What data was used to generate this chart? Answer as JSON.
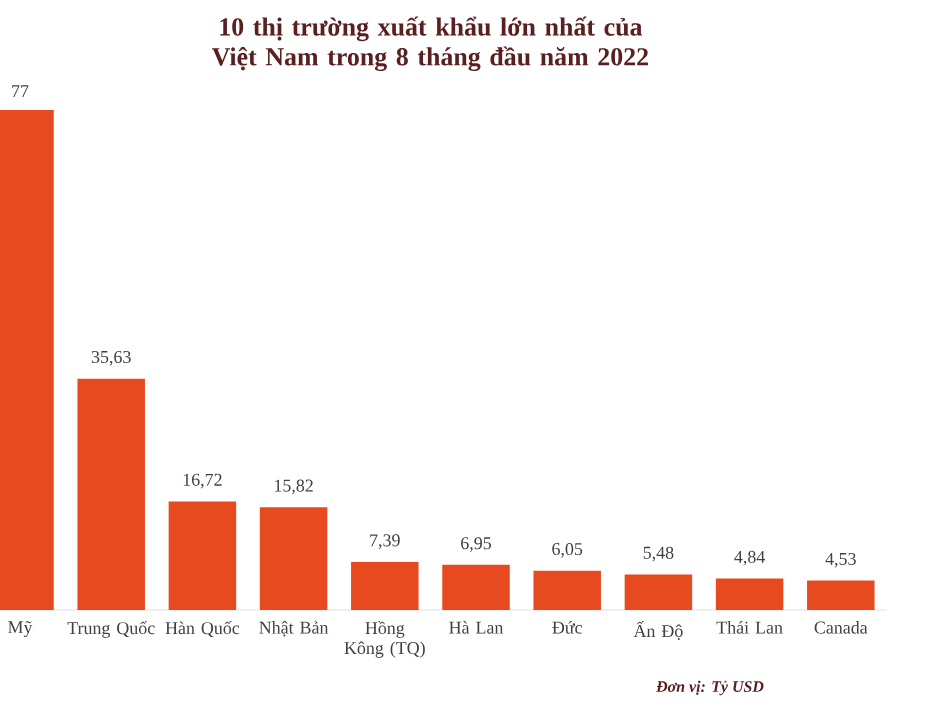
{
  "chart_data": {
    "type": "bar",
    "title": "10 thị trường xuất khẩu lớn nhất của Việt Nam trong 8 tháng đầu năm 2022",
    "categories": [
      "Mỹ",
      "Trung Quốc",
      "Hàn Quốc",
      "Nhật Bản",
      "Hồng Kông (TQ)",
      "Hà Lan",
      "Đức",
      "Ấn Độ",
      "Thái Lan",
      "Canada"
    ],
    "values": [
      77,
      35.63,
      16.72,
      15.82,
      7.39,
      6.95,
      6.05,
      5.48,
      4.84,
      4.53
    ],
    "value_labels": [
      "77",
      "35,63",
      "16,72",
      "15,82",
      "7,39",
      "6,95",
      "6,05",
      "5,48",
      "4,84",
      "4,53"
    ],
    "color": "#e64a1e",
    "annotations": [
      "Đơn vị: Tỷ USD"
    ]
  }
}
